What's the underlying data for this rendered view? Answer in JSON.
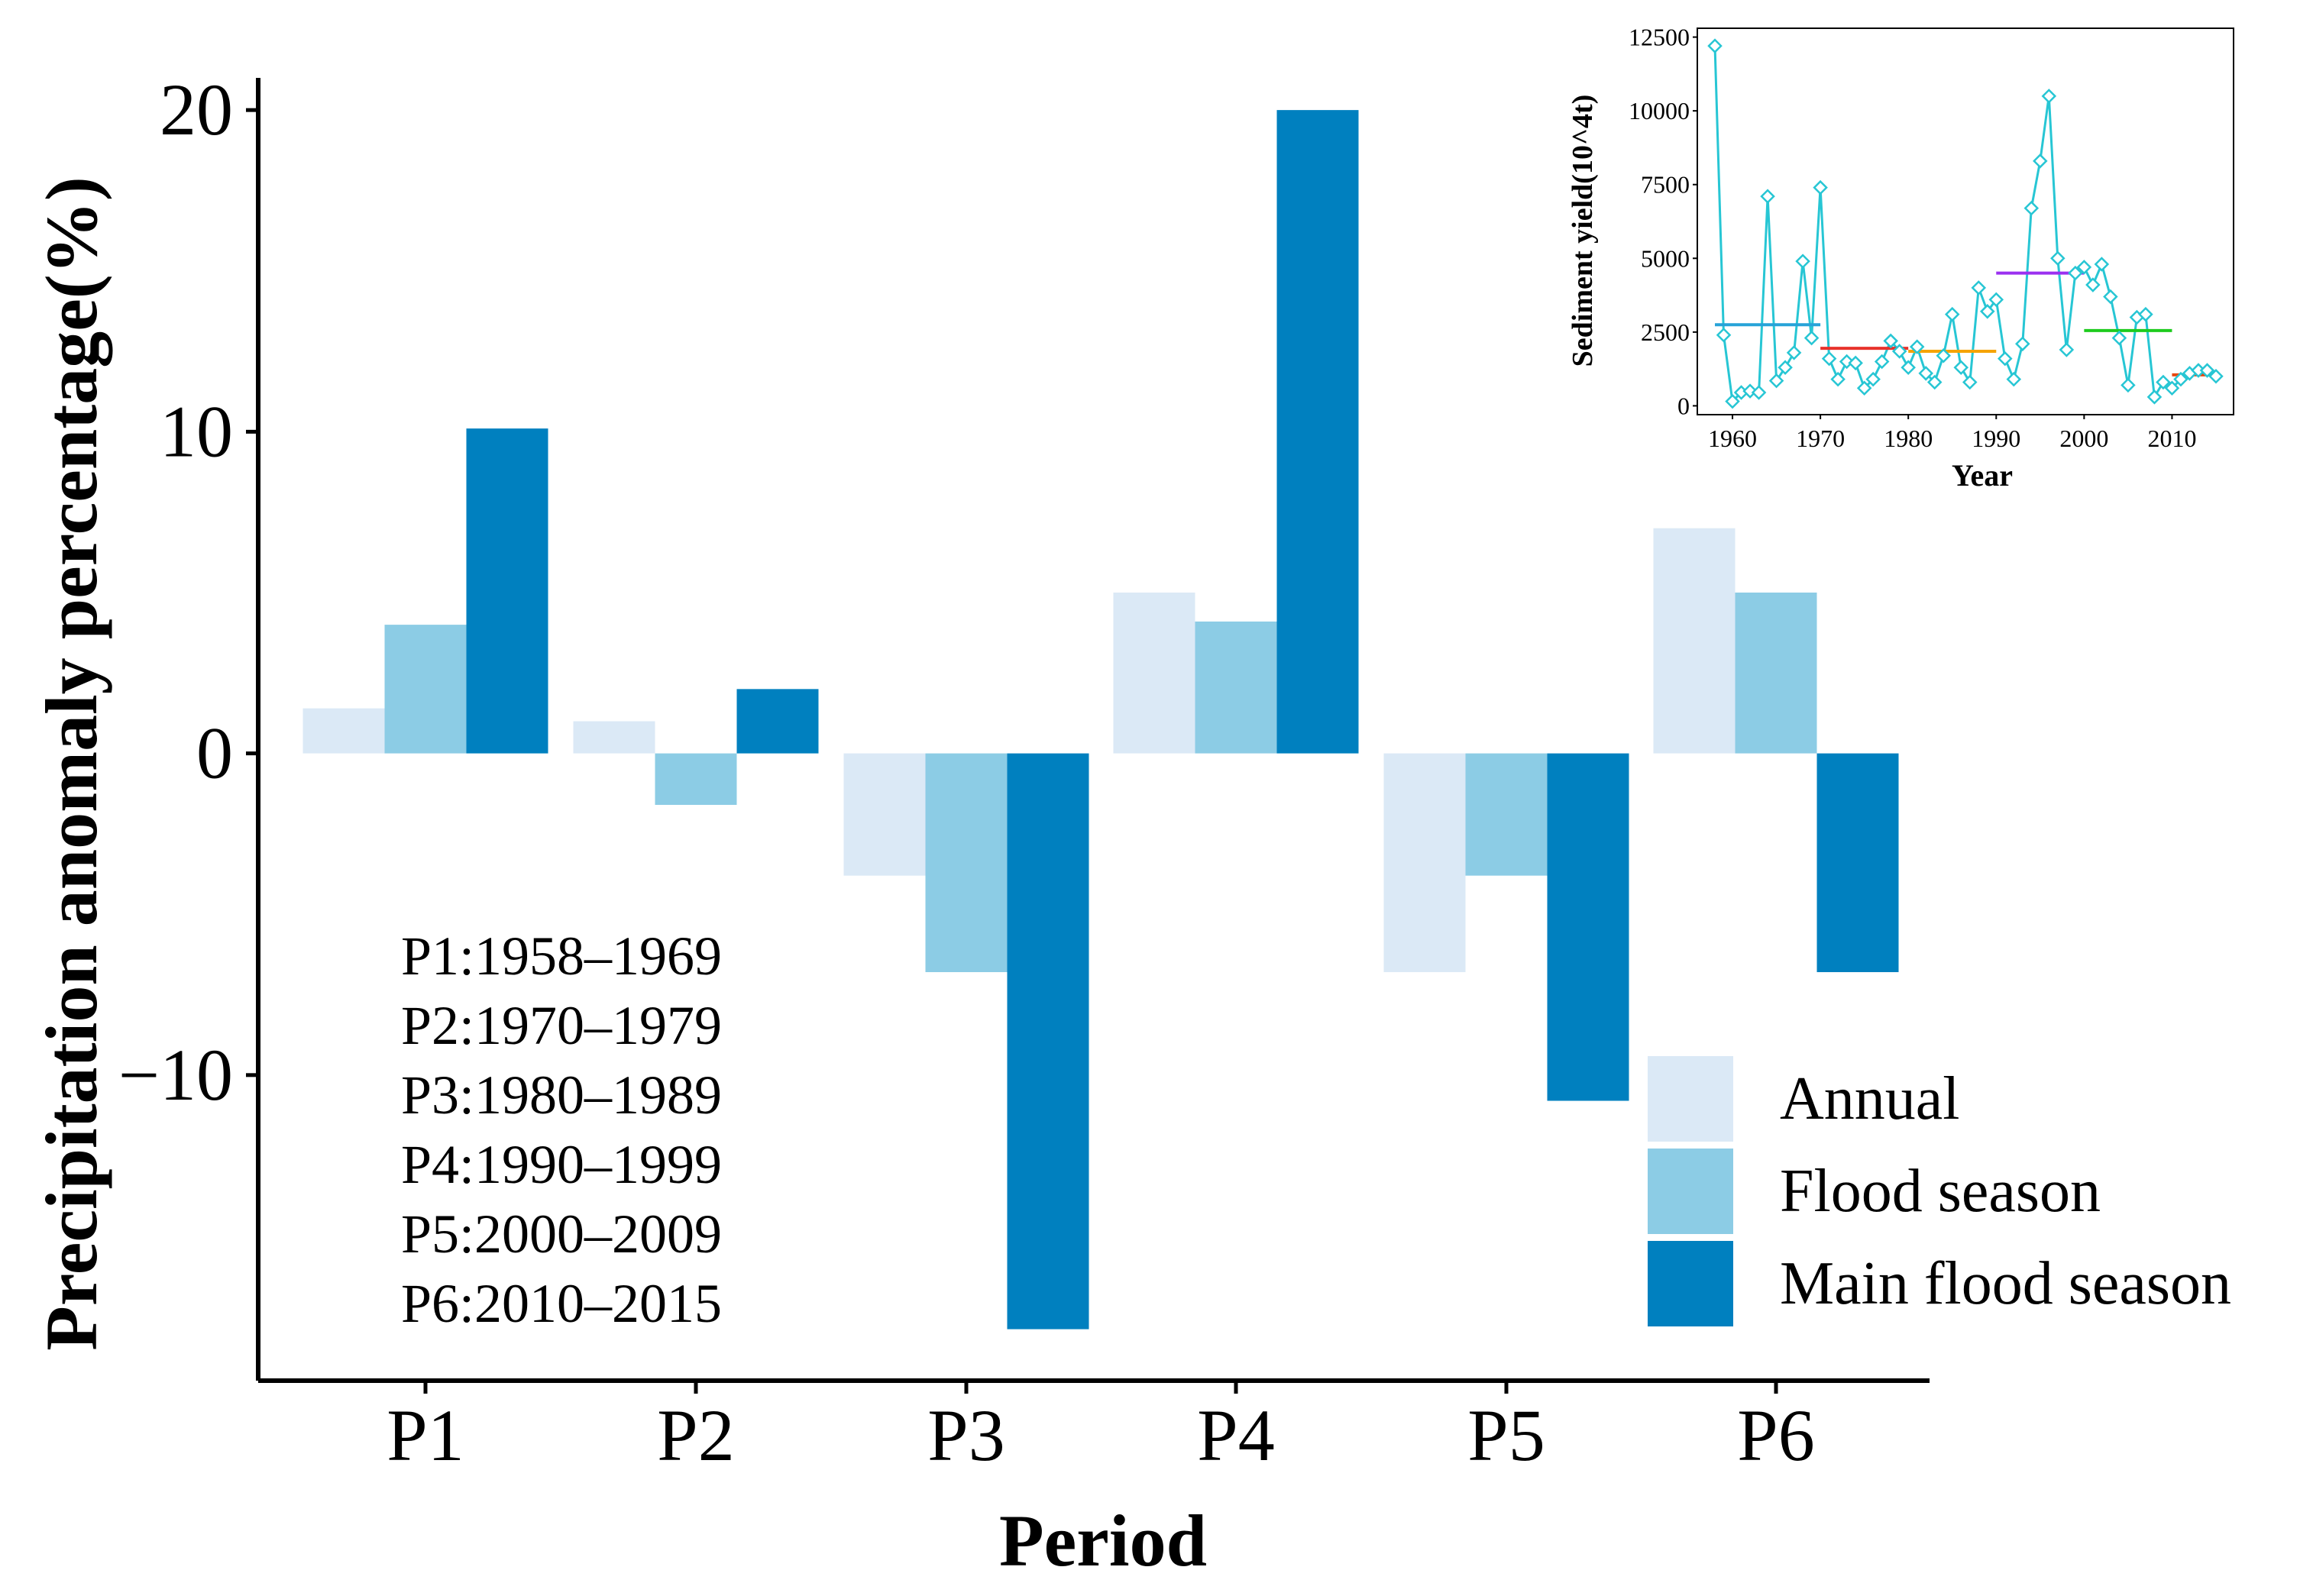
{
  "chart_data": [
    {
      "type": "bar",
      "title": "",
      "xlabel": "Period",
      "ylabel": "Precipitation anomaly percentage(%)",
      "categories": [
        "P1",
        "P2",
        "P3",
        "P4",
        "P5",
        "P6"
      ],
      "ylim": [
        -19.5,
        21
      ],
      "yticks": [
        20,
        10,
        0,
        -10
      ],
      "ytick_labels": [
        "20",
        "10",
        "0",
        "−10"
      ],
      "grid": false,
      "legend_position": "bottom-right",
      "series": [
        {
          "name": "Annual",
          "color": "#dbe9f6",
          "values": [
            1.4,
            1.0,
            -3.8,
            5.0,
            -6.8,
            7.0
          ]
        },
        {
          "name": "Flood season",
          "color": "#8ccce5",
          "values": [
            4.0,
            -1.6,
            -6.8,
            4.1,
            -3.8,
            5.0
          ]
        },
        {
          "name": "Main flood season",
          "color": "#0080bf",
          "values": [
            10.1,
            2.0,
            -17.9,
            20.0,
            -10.8,
            -6.8
          ]
        }
      ],
      "annotations": [
        "P1:1958–1969",
        "P2:1970–1979",
        "P3:1980–1989",
        "P4:1990–1999",
        "P5:2000–2009",
        "P6:2010–2015"
      ]
    },
    {
      "type": "line",
      "title": "",
      "xlabel": "Year",
      "ylabel": "Sediment yield(10^4t)",
      "xlim": [
        1956,
        2017
      ],
      "ylim": [
        -300,
        12800
      ],
      "xticks": [
        1960,
        1970,
        1980,
        1990,
        2000,
        2010
      ],
      "yticks": [
        0,
        2500,
        5000,
        7500,
        10000,
        12500
      ],
      "grid": false,
      "series": [
        {
          "color": "#27c6d4",
          "marker": "diamond",
          "x": [
            1958,
            1959,
            1960,
            1961,
            1962,
            1963,
            1964,
            1965,
            1966,
            1967,
            1968,
            1969,
            1970,
            1971,
            1972,
            1973,
            1974,
            1975,
            1976,
            1977,
            1978,
            1979,
            1980,
            1981,
            1982,
            1983,
            1984,
            1985,
            1986,
            1987,
            1988,
            1989,
            1990,
            1991,
            1992,
            1993,
            1994,
            1995,
            1996,
            1997,
            1998,
            1999,
            2000,
            2001,
            2002,
            2003,
            2004,
            2005,
            2006,
            2007,
            2008,
            2009,
            2010,
            2011,
            2012,
            2013,
            2014,
            2015
          ],
          "y": [
            12200,
            2400,
            150,
            450,
            500,
            450,
            7100,
            850,
            1300,
            1800,
            4900,
            2300,
            7400,
            1600,
            900,
            1500,
            1450,
            600,
            900,
            1500,
            2200,
            1850,
            1300,
            2000,
            1100,
            800,
            1700,
            3100,
            1300,
            800,
            4000,
            3200,
            3600,
            1600,
            900,
            2100,
            6700,
            8300,
            10500,
            5000,
            1900,
            4500,
            4700,
            4100,
            4800,
            3700,
            2300,
            700,
            3000,
            3100,
            300,
            800,
            600,
            900,
            1100,
            1200,
            1200,
            1000
          ]
        }
      ],
      "period_means": [
        {
          "x0": 1958,
          "x1": 1970,
          "y": 2750,
          "color": "#27a3d8"
        },
        {
          "x0": 1970,
          "x1": 1980,
          "y": 1950,
          "color": "#e8322b"
        },
        {
          "x0": 1980,
          "x1": 1990,
          "y": 1850,
          "color": "#f5a300"
        },
        {
          "x0": 1990,
          "x1": 2000,
          "y": 4500,
          "color": "#9b30f0"
        },
        {
          "x0": 2000,
          "x1": 2010,
          "y": 2550,
          "color": "#1ecb1e"
        },
        {
          "x0": 2010,
          "x1": 2015,
          "y": 1050,
          "color": "#e8470f"
        }
      ]
    }
  ]
}
